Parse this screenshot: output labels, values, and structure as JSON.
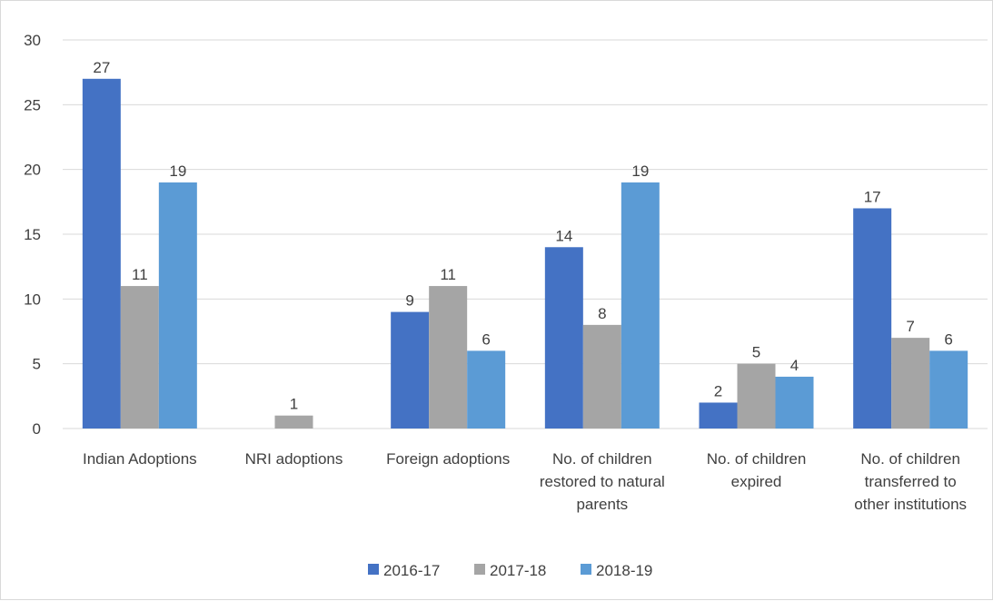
{
  "chart_data": {
    "type": "bar",
    "title": "",
    "xlabel": "",
    "ylabel": "",
    "ylim": [
      0,
      30
    ],
    "yticks": [
      0,
      5,
      10,
      15,
      20,
      25,
      30
    ],
    "grid": true,
    "legend_position": "bottom",
    "categories": [
      [
        "Indian Adoptions"
      ],
      [
        "NRI adoptions"
      ],
      [
        "Foreign adoptions"
      ],
      [
        "No. of children",
        "restored to natural",
        "parents"
      ],
      [
        "No. of children",
        "expired"
      ],
      [
        "No. of children",
        "transferred to",
        "other institutions"
      ]
    ],
    "series": [
      {
        "name": "2016-17",
        "color": "#4472c4",
        "values": [
          27,
          null,
          9,
          14,
          2,
          17
        ]
      },
      {
        "name": "2017-18",
        "color": "#a5a5a5",
        "values": [
          11,
          1,
          11,
          8,
          5,
          7
        ]
      },
      {
        "name": "2018-19",
        "color": "#5b9bd5",
        "values": [
          19,
          null,
          6,
          19,
          4,
          6
        ]
      }
    ]
  }
}
